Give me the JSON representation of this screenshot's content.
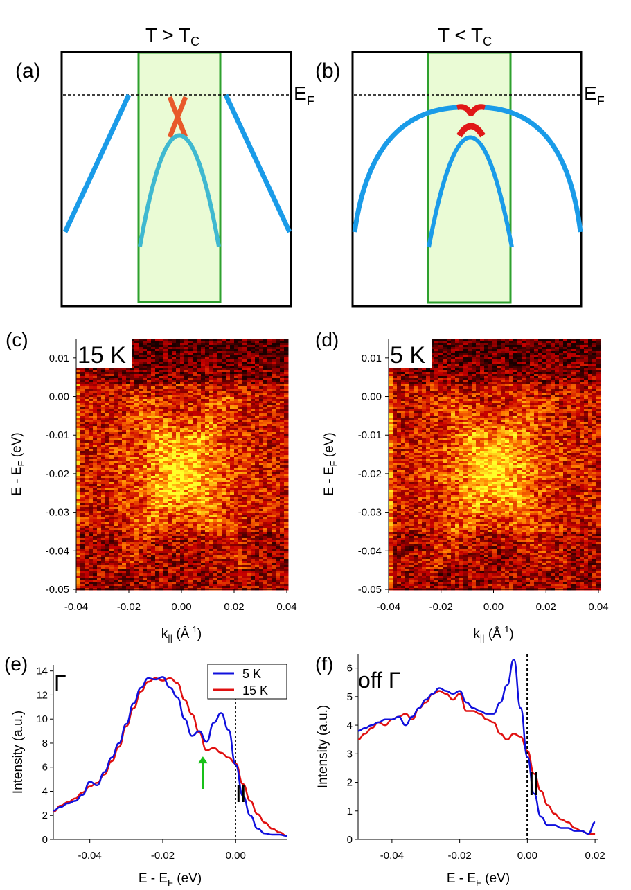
{
  "panels": {
    "a": {
      "label": "(a)",
      "title": "T > T",
      "title_sub": "C",
      "ef_label": "E",
      "ef_sub": "F"
    },
    "b": {
      "label": "(b)",
      "title": "T < T",
      "title_sub": "C",
      "ef_label": "E",
      "ef_sub": "F"
    },
    "c": {
      "label": "(c)",
      "temp": "15 K"
    },
    "d": {
      "label": "(d)",
      "temp": "5 K"
    },
    "e": {
      "label": "(e)",
      "tag": "Γ"
    },
    "f": {
      "label": "(f)",
      "tag": "off Γ"
    }
  },
  "colors": {
    "band_blue": "#1a9be8",
    "band_teal": "#3fb8d0",
    "cone_orange": "#e8592a",
    "gap_red": "#e01818",
    "box_green": "#2ea02e",
    "box_fill": "#eafbd5",
    "series_5K": "#1010dd",
    "series_15K": "#e01010",
    "arrow_green": "#18c018"
  },
  "chart_data": [
    {
      "id": "c",
      "type": "heatmap",
      "title": "15 K",
      "xlabel": "k|| (Å-1)",
      "ylabel": "E - EF (eV)",
      "xlim": [
        -0.04,
        0.04
      ],
      "ylim": [
        -0.05,
        0.015
      ],
      "xticks": [
        "-0.04",
        "-0.02",
        "0.00",
        "0.02",
        "0.04"
      ],
      "yticks": [
        "0.01",
        "0.00",
        "-0.01",
        "-0.02",
        "-0.03",
        "-0.04",
        "-0.05"
      ],
      "xtick_values": [
        -0.04,
        -0.02,
        0.0,
        0.02,
        0.04
      ],
      "ytick_values": [
        0.01,
        0.0,
        -0.01,
        -0.02,
        -0.03,
        -0.04,
        -0.05
      ],
      "intensity_peak": {
        "k": 0.0,
        "E": -0.019
      }
    },
    {
      "id": "d",
      "type": "heatmap",
      "title": "5 K",
      "xlabel": "k|| (Å-1)",
      "ylabel": "E - EF (eV)",
      "xlim": [
        -0.04,
        0.04
      ],
      "ylim": [
        -0.05,
        0.015
      ],
      "xticks": [
        "-0.04",
        "-0.02",
        "0.00",
        "0.02",
        "0.04"
      ],
      "yticks": [
        "0.01",
        "0.00",
        "-0.01",
        "-0.02",
        "-0.03",
        "-0.04",
        "-0.05"
      ],
      "xtick_values": [
        -0.04,
        -0.02,
        0.0,
        0.02,
        0.04
      ],
      "ytick_values": [
        0.01,
        0.0,
        -0.01,
        -0.02,
        -0.03,
        -0.04,
        -0.05
      ],
      "intensity_peak": {
        "k": 0.0,
        "E": -0.019
      }
    },
    {
      "id": "e",
      "type": "line",
      "annotation": "Γ",
      "xlabel": "E - EF (eV)",
      "ylabel": "Intensity (a.u.)",
      "xlim": [
        -0.05,
        0.014
      ],
      "ylim": [
        0,
        14.5
      ],
      "xticks": [
        "-0.04",
        "-0.02",
        "0.00"
      ],
      "xtick_values": [
        -0.04,
        -0.02,
        0.0
      ],
      "yticks": [
        "0",
        "2",
        "4",
        "6",
        "8",
        "10",
        "12",
        "14"
      ],
      "ytick_values": [
        0,
        2,
        4,
        6,
        8,
        10,
        12,
        14
      ],
      "legend": [
        "5 K",
        "15 K"
      ],
      "legend_position": "top-right",
      "fermi_level_marker": 0.0,
      "arrow_at": {
        "x": -0.009,
        "y_from": 4.2,
        "y_to": 6.9
      },
      "x": [
        -0.05,
        -0.048,
        -0.046,
        -0.044,
        -0.042,
        -0.04,
        -0.038,
        -0.036,
        -0.034,
        -0.032,
        -0.03,
        -0.028,
        -0.026,
        -0.024,
        -0.022,
        -0.02,
        -0.018,
        -0.016,
        -0.014,
        -0.012,
        -0.01,
        -0.008,
        -0.006,
        -0.004,
        -0.002,
        0.0,
        0.002,
        0.004,
        0.006,
        0.008,
        0.01,
        0.012,
        0.014
      ],
      "series": [
        {
          "name": "5 K",
          "values": [
            2.4,
            2.7,
            3.0,
            3.2,
            3.7,
            4.8,
            4.5,
            5.6,
            6.8,
            8.0,
            9.6,
            11.3,
            12.6,
            13.4,
            13.3,
            13.5,
            12.6,
            11.8,
            10.0,
            8.6,
            9.0,
            8.1,
            9.7,
            10.5,
            9.1,
            6.2,
            3.6,
            2.0,
            0.9,
            0.5,
            0.4,
            0.4,
            0.3
          ]
        },
        {
          "name": "15 K",
          "values": [
            2.3,
            2.8,
            3.1,
            3.4,
            3.9,
            4.4,
            4.7,
            5.4,
            6.5,
            7.7,
            9.4,
            10.9,
            12.3,
            13.1,
            13.4,
            13.2,
            13.4,
            13.0,
            11.6,
            10.4,
            8.9,
            7.4,
            7.6,
            7.2,
            6.8,
            6.3,
            4.6,
            3.2,
            2.1,
            1.4,
            0.9,
            0.6,
            0.3
          ]
        }
      ]
    },
    {
      "id": "f",
      "type": "line",
      "annotation": "off Γ",
      "xlabel": "E - EF (eV)",
      "ylabel": "Intensity (a.u.)",
      "xlim": [
        -0.05,
        0.021
      ],
      "ylim": [
        0,
        6.5
      ],
      "xticks": [
        "-0.04",
        "-0.02",
        "0.00",
        "0.02"
      ],
      "xtick_values": [
        -0.04,
        -0.02,
        0.0,
        0.02
      ],
      "yticks": [
        "0",
        "1",
        "2",
        "3",
        "4",
        "5",
        "6"
      ],
      "ytick_values": [
        0,
        1,
        2,
        3,
        4,
        5,
        6
      ],
      "fermi_level_marker": 0.0,
      "x": [
        -0.05,
        -0.048,
        -0.046,
        -0.044,
        -0.042,
        -0.04,
        -0.038,
        -0.036,
        -0.034,
        -0.032,
        -0.03,
        -0.028,
        -0.026,
        -0.024,
        -0.022,
        -0.02,
        -0.018,
        -0.016,
        -0.014,
        -0.012,
        -0.01,
        -0.008,
        -0.006,
        -0.004,
        -0.002,
        0.0,
        0.002,
        0.004,
        0.006,
        0.008,
        0.01,
        0.012,
        0.014,
        0.016,
        0.018,
        0.02
      ],
      "series": [
        {
          "name": "5 K",
          "values": [
            3.8,
            3.9,
            4.0,
            4.1,
            4.2,
            4.2,
            4.3,
            4.0,
            4.3,
            4.6,
            4.9,
            5.1,
            5.3,
            5.2,
            5.1,
            5.2,
            4.8,
            4.6,
            4.5,
            4.4,
            4.4,
            4.8,
            5.4,
            6.3,
            4.6,
            2.9,
            1.6,
            0.8,
            0.5,
            0.5,
            0.4,
            0.4,
            0.3,
            0.3,
            0.2,
            0.6
          ]
        },
        {
          "name": "15 K",
          "values": [
            3.5,
            3.7,
            3.9,
            4.1,
            4.0,
            4.2,
            4.3,
            4.4,
            4.2,
            4.6,
            4.8,
            5.1,
            5.2,
            5.1,
            4.9,
            5.1,
            4.5,
            4.5,
            4.4,
            4.2,
            4.1,
            3.7,
            3.5,
            3.7,
            3.6,
            3.1,
            2.3,
            1.7,
            1.2,
            0.9,
            0.7,
            0.6,
            0.4,
            0.3,
            0.2,
            0.2
          ]
        }
      ]
    }
  ]
}
